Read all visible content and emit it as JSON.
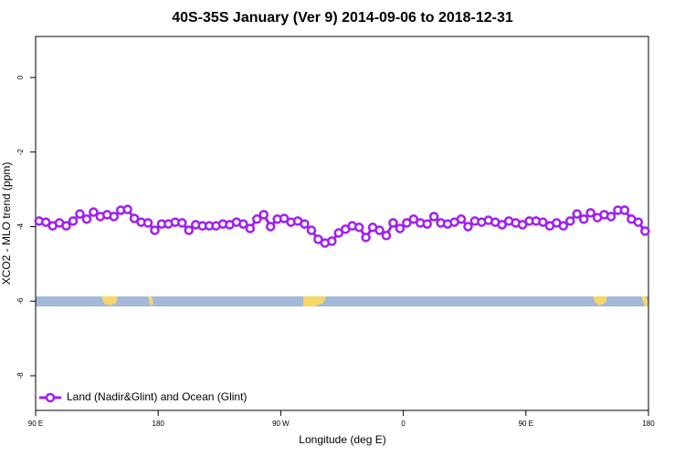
{
  "chart_data": {
    "type": "line",
    "title": "40S-35S January (Ver 9)   2014-09-06 to 2018-12-31",
    "x_label": "Longitude (deg E)",
    "y_label": "XCO2 - MLO trend (ppm)",
    "xlim": [
      90,
      540
    ],
    "xticks": [
      {
        "value": 90,
        "label": "90 E"
      },
      180,
      {
        "value": 270,
        "label": "90 W"
      },
      {
        "value": 360,
        "label": "0"
      },
      {
        "value": 450,
        "label": "90 E"
      },
      {
        "value": 540,
        "label": "180"
      }
    ],
    "ylim": [
      -8.93,
      1.1
    ],
    "yticks": [
      0,
      -2,
      -4,
      -6,
      -8
    ],
    "legend": "lower left",
    "x": [
      92.5,
      97.5,
      102.5,
      107.5,
      112.5,
      117.5,
      122.5,
      127.5,
      132.5,
      137.5,
      142.5,
      147.5,
      152.5,
      157.5,
      162.5,
      167.5,
      172.5,
      177.5,
      182.5,
      187.5,
      192.5,
      197.5,
      202.5,
      207.5,
      212.5,
      217.5,
      222.5,
      227.5,
      232.5,
      237.5,
      242.5,
      247.5,
      252.5,
      257.5,
      262.5,
      267.5,
      272.5,
      277.5,
      282.5,
      287.5,
      292.5,
      297.5,
      302.5,
      307.5,
      312.5,
      317.5,
      322.5,
      327.5,
      332.5,
      337.5,
      342.5,
      347.5,
      352.5,
      357.5,
      362.5,
      367.5,
      372.5,
      377.5,
      382.5,
      387.5,
      392.5,
      397.5,
      402.5,
      407.5,
      412.5,
      417.5,
      422.5,
      427.5,
      432.5,
      437.5,
      442.5,
      447.5,
      452.5,
      457.5,
      462.5,
      467.5,
      472.5,
      477.5,
      482.5,
      487.5,
      492.5,
      497.5,
      502.5,
      507.5,
      512.5,
      517.5,
      522.5,
      527.5,
      532.5,
      537.5
    ],
    "series": [
      {
        "name": "Land (Nadir&Glint) and Ocean (Glint)",
        "color": "#a020f0",
        "values": [
          -3.85,
          -3.88,
          -3.98,
          -3.9,
          -3.98,
          -3.85,
          -3.66,
          -3.8,
          -3.61,
          -3.73,
          -3.68,
          -3.73,
          -3.56,
          -3.54,
          -3.78,
          -3.88,
          -3.9,
          -4.1,
          -3.93,
          -3.93,
          -3.88,
          -3.9,
          -4.1,
          -3.95,
          -3.98,
          -3.98,
          -3.98,
          -3.93,
          -3.95,
          -3.88,
          -3.93,
          -4.05,
          -3.8,
          -3.68,
          -4.0,
          -3.8,
          -3.78,
          -3.88,
          -3.85,
          -3.93,
          -4.1,
          -4.34,
          -4.44,
          -4.39,
          -4.17,
          -4.07,
          -3.98,
          -4.02,
          -4.29,
          -4.02,
          -4.1,
          -4.24,
          -3.9,
          -4.05,
          -3.9,
          -3.8,
          -3.9,
          -3.93,
          -3.73,
          -3.9,
          -3.93,
          -3.88,
          -3.8,
          -4.0,
          -3.85,
          -3.88,
          -3.83,
          -3.88,
          -3.95,
          -3.85,
          -3.9,
          -3.95,
          -3.85,
          -3.85,
          -3.88,
          -3.98,
          -3.9,
          -3.98,
          -3.85,
          -3.66,
          -3.8,
          -3.63,
          -3.76,
          -3.68,
          -3.73,
          -3.56,
          -3.56,
          -3.8,
          -3.88,
          -4.12
        ]
      }
    ]
  }
}
